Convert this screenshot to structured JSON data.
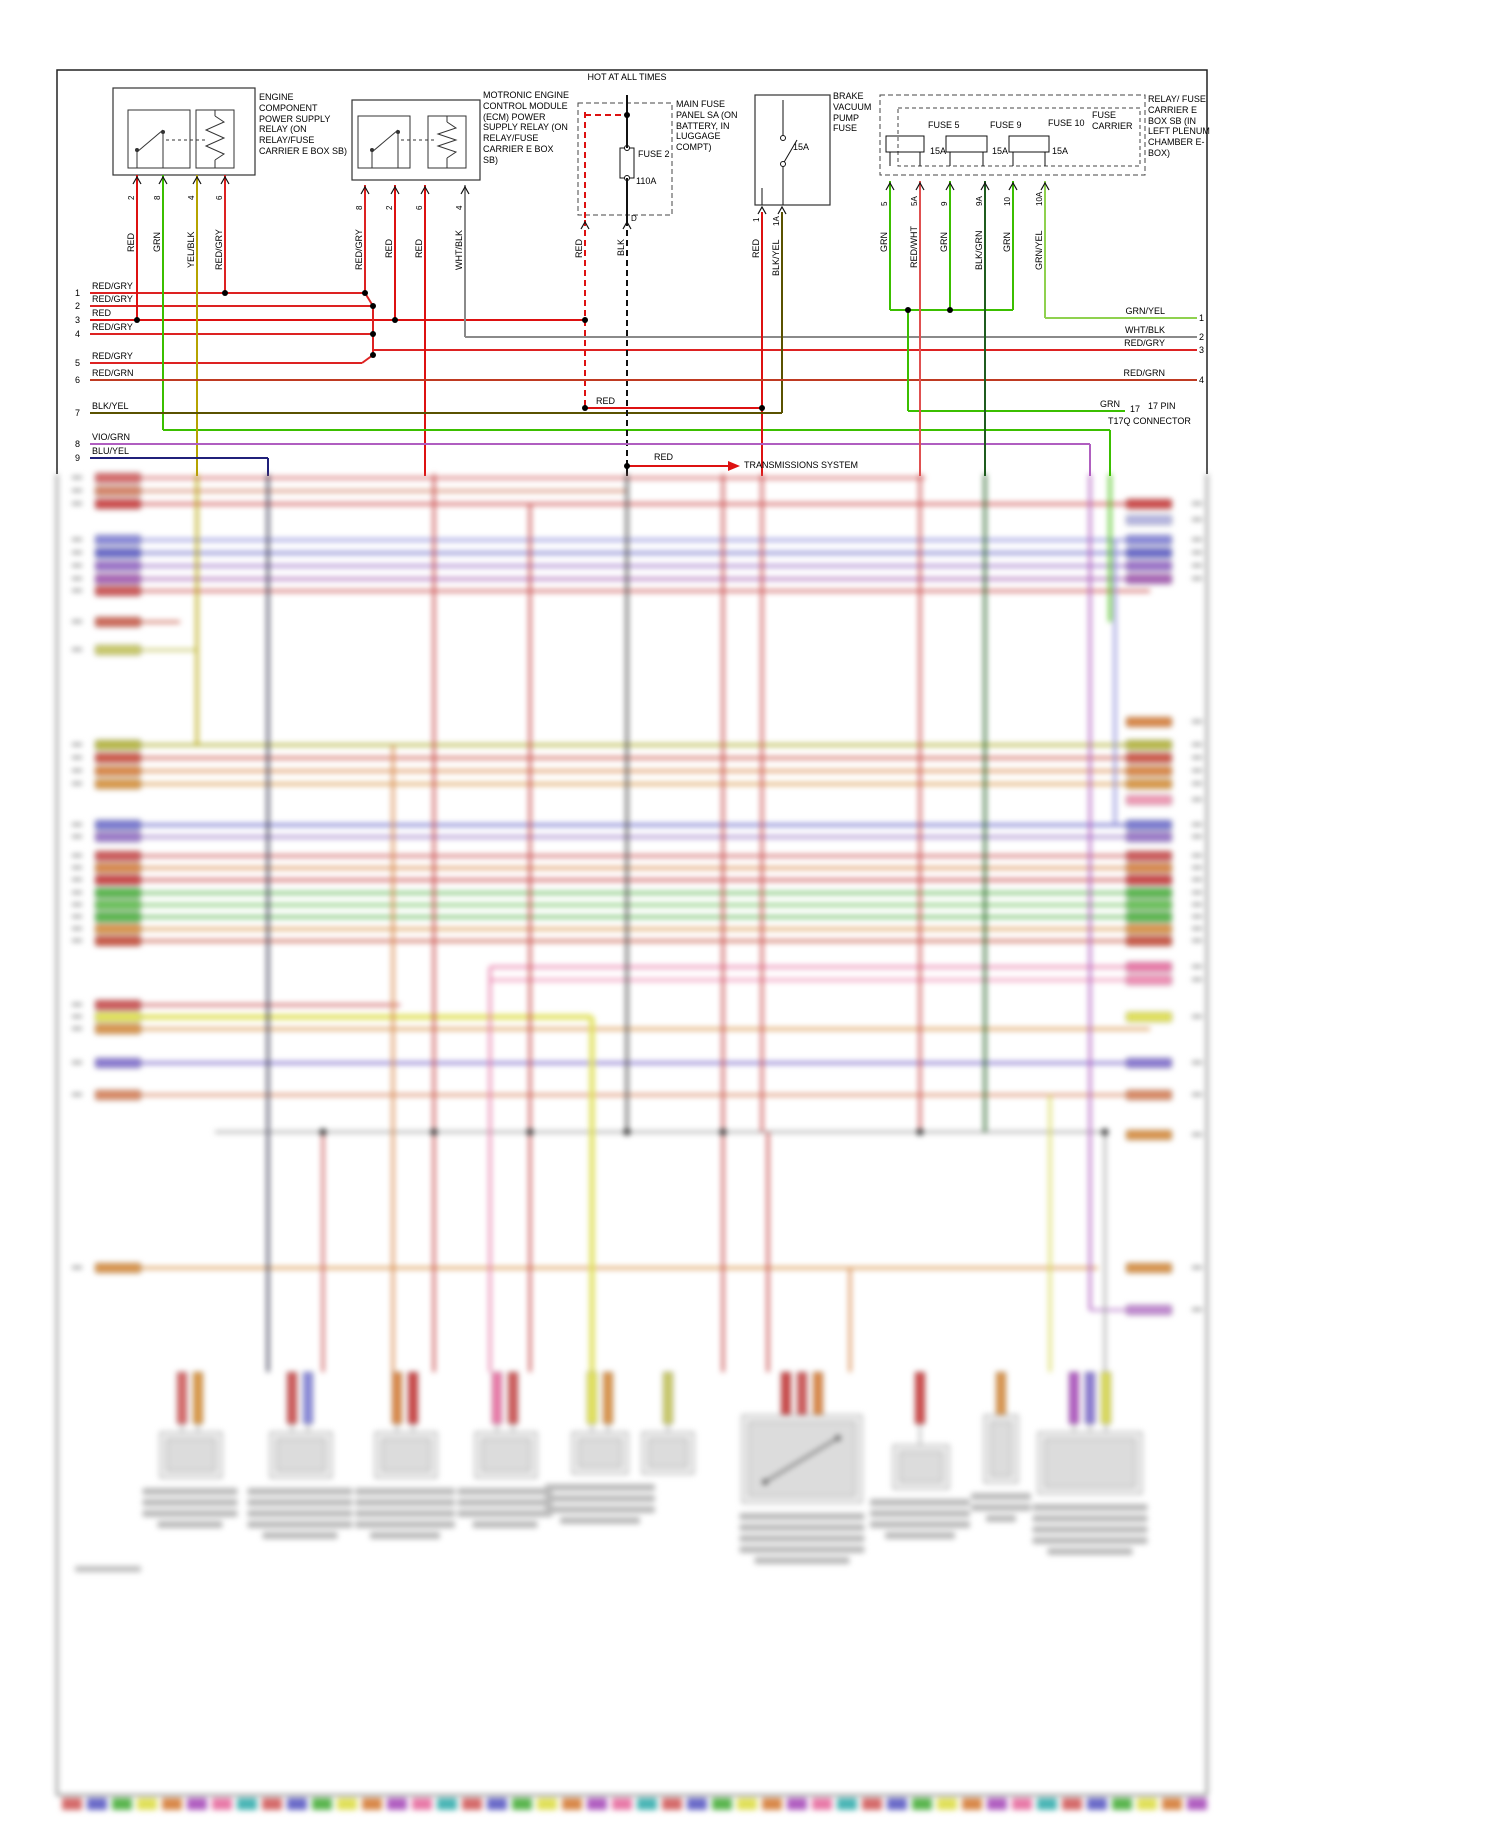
{
  "colors": {
    "red": "#dd1111",
    "red_gry": "#dd2222",
    "red_wht": "#e05050",
    "red_grn": "#bf3a22",
    "grn": "#3bbf00",
    "grn_yel": "#8fd14f",
    "blk_grn": "#1f5c1f",
    "yel_blk": "#b5a300",
    "wht_blk": "#8a8a8a",
    "blk_yel": "#5a5200",
    "blk": "#111111",
    "vio_grn": "#b05ec0",
    "blu_yel": "#20207a"
  },
  "diagram": {
    "engine_relay": {
      "label": "ENGINE COMPONENT POWER SUPPLY RELAY (ON RELAY/FUSE CARRIER E BOX SB)",
      "pins": [
        "2",
        "8",
        "4",
        "6"
      ],
      "wires": [
        "RED",
        "GRN",
        "YEL/BLK",
        "RED/GRY"
      ]
    },
    "ecm_relay": {
      "label": "MOTRONIC ENGINE CONTROL MODULE (ECM) POWER SUPPLY RELAY (ON RELAY/FUSE CARRIER E BOX SB)",
      "pins": [
        "8",
        "2",
        "6",
        "4"
      ],
      "wires": [
        "RED/GRY",
        "RED",
        "RED",
        "WHT/BLK"
      ]
    },
    "main_fuse_panel": {
      "hot": "HOT AT ALL TIMES",
      "label": "MAIN FUSE PANEL SA (ON BATTERY, IN LUGGAGE COMPT)",
      "fuse_name": "FUSE 2",
      "amps": "110A",
      "pin_d": "D",
      "wires": [
        "RED",
        "BLK"
      ]
    },
    "brake_pump_fuse": {
      "label": "BRAKE VACUUM PUMP FUSE",
      "amps": "15A",
      "pins": [
        "1",
        "1A"
      ],
      "wires": [
        "RED",
        "BLK/YEL"
      ]
    },
    "fuse_carrier": {
      "label": "RELAY/ FUSE CARRIER E BOX SB (IN LEFT PLENUM CHAMBER E-BOX)",
      "inner_label": "FUSE CARRIER",
      "fuses": [
        {
          "name": "FUSE 5",
          "amps": "15A"
        },
        {
          "name": "FUSE 9",
          "amps": "15A"
        },
        {
          "name": "FUSE 10",
          "amps": "15A"
        }
      ],
      "pins": [
        "5",
        "5A",
        "9",
        "9A",
        "10",
        "10A"
      ],
      "wires": [
        "GRN",
        "RED/WHT",
        "GRN",
        "BLK/GRN",
        "GRN",
        "GRN/YEL"
      ]
    },
    "left_pins": [
      {
        "n": "1",
        "wire": "RED/GRY"
      },
      {
        "n": "2",
        "wire": "RED/GRY"
      },
      {
        "n": "3",
        "wire": "RED"
      },
      {
        "n": "4",
        "wire": "RED/GRY"
      },
      {
        "n": "5",
        "wire": "RED/GRY"
      },
      {
        "n": "6",
        "wire": "RED/GRN"
      },
      {
        "n": "7",
        "wire": "BLK/YEL"
      },
      {
        "n": "8",
        "wire": "VIO/GRN"
      },
      {
        "n": "9",
        "wire": "BLU/YEL"
      }
    ],
    "right_pins": [
      {
        "wire": "GRN/YEL",
        "n": "1"
      },
      {
        "wire": "WHT/BLK",
        "n": "2"
      },
      {
        "wire": "RED/GRY",
        "n": "3"
      },
      {
        "wire": "RED/GRN",
        "n": "4"
      },
      {
        "wire": "GRN",
        "n": "17"
      }
    ],
    "right_connector_line1": "17 PIN",
    "right_connector_line2": "T17Q CONNECTOR",
    "labels": {
      "red_segment": "RED",
      "red_to_transmissions": "RED",
      "transmissions": "TRANSMISSIONS SYSTEM"
    }
  }
}
